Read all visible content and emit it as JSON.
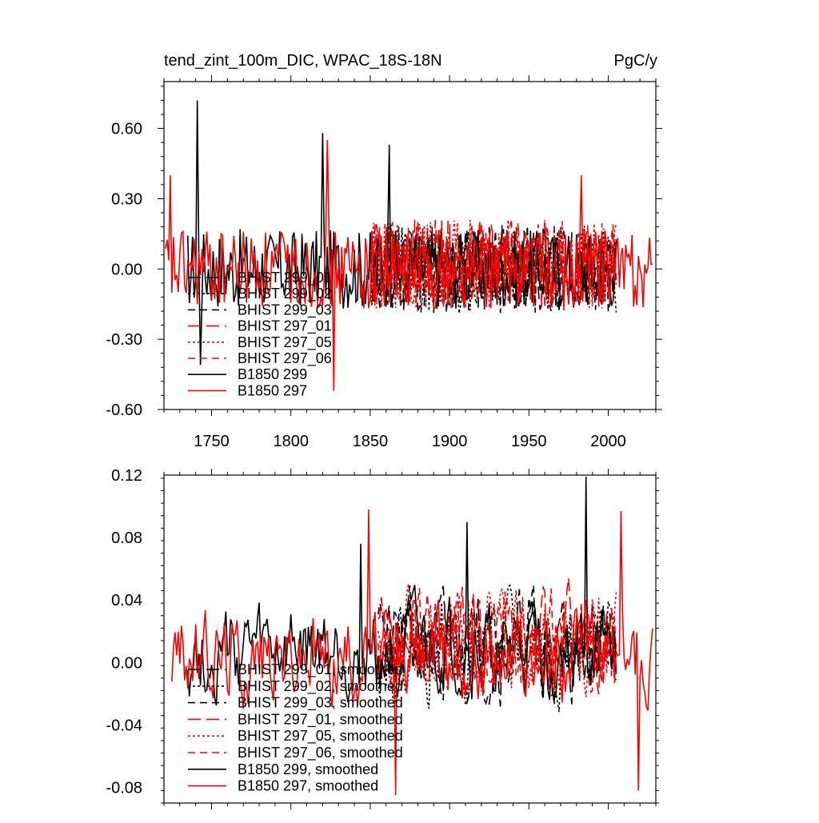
{
  "chart_data": [
    {
      "type": "line",
      "title": "tend_zint_100m_DIC, WPAC_18S-18N",
      "units": "PgC/y",
      "xlabel": "",
      "ylabel": "",
      "xlim": [
        1720,
        2030
      ],
      "ylim": [
        -0.6,
        0.8
      ],
      "x_ticks": [
        1750,
        1800,
        1850,
        1900,
        1950,
        2000
      ],
      "x_tick_labels": [
        "1750",
        "1800",
        "1850",
        "1900",
        "1950",
        "2000"
      ],
      "y_ticks": [
        -0.6,
        -0.3,
        0.0,
        0.3,
        0.6
      ],
      "y_tick_labels": [
        "-0.60",
        "-0.30",
        "0.00",
        "0.30",
        "0.60"
      ],
      "grid": false,
      "legend_position": "lower-left",
      "series": [
        {
          "name": "BHIST 299_01",
          "color": "#000000",
          "dash": "longdash",
          "x_start": 1850,
          "x_end": 2005,
          "amp": 0.19,
          "mean": 0.0,
          "seed": 11
        },
        {
          "name": "BHIST 299_02",
          "color": "#000000",
          "dash": "dot",
          "x_start": 1850,
          "x_end": 2005,
          "amp": 0.19,
          "mean": 0.0,
          "seed": 12
        },
        {
          "name": "BHIST 299_03",
          "color": "#000000",
          "dash": "dash",
          "x_start": 1850,
          "x_end": 2005,
          "amp": 0.19,
          "mean": 0.0,
          "seed": 13
        },
        {
          "name": "BHIST 297_01",
          "color": "#ff0000",
          "dash": "longdash",
          "x_start": 1850,
          "x_end": 2005,
          "amp": 0.19,
          "mean": 0.02,
          "seed": 14
        },
        {
          "name": "BHIST 297_05",
          "color": "#ff0000",
          "dash": "dot",
          "x_start": 1850,
          "x_end": 2005,
          "amp": 0.19,
          "mean": 0.02,
          "seed": 15
        },
        {
          "name": "BHIST 297_06",
          "color": "#ff0000",
          "dash": "dash",
          "x_start": 1850,
          "x_end": 2005,
          "amp": 0.19,
          "mean": 0.02,
          "seed": 16
        },
        {
          "name": "B1850 299",
          "color": "#000000",
          "dash": "solid",
          "x_start": 1735,
          "x_end": 2005,
          "amp": 0.17,
          "mean": 0.0,
          "seed": 17,
          "peaks": [
            [
              1741,
              0.72
            ],
            [
              1743,
              -0.41
            ],
            [
              1820,
              0.58
            ],
            [
              1862,
              0.53
            ]
          ]
        },
        {
          "name": "B1850 297",
          "color": "#ff0000",
          "dash": "solid",
          "x_start": 1721,
          "x_end": 2028,
          "amp": 0.17,
          "mean": 0.0,
          "seed": 18,
          "peaks": [
            [
              1724,
              0.4
            ],
            [
              1827,
              -0.52
            ],
            [
              1823,
              0.55
            ],
            [
              1983,
              0.4
            ]
          ]
        }
      ]
    },
    {
      "type": "line",
      "title": "",
      "xlabel": "",
      "ylabel": "",
      "xlim": [
        1720,
        2030
      ],
      "ylim": [
        -0.09,
        0.12
      ],
      "x_ticks": [
        1750,
        1800,
        1850,
        1900,
        1950,
        2000
      ],
      "x_tick_labels": [],
      "y_ticks": [
        -0.08,
        -0.04,
        0.0,
        0.04,
        0.08,
        0.12
      ],
      "y_tick_labels": [
        "-0.08",
        "-0.04",
        "0.00",
        "0.04",
        "0.08",
        "0.12"
      ],
      "grid": false,
      "legend_position": "lower-left",
      "series": [
        {
          "name": "BHIST 299_01, smoothed",
          "color": "#000000",
          "dash": "longdash",
          "x_start": 1855,
          "x_end": 2005,
          "amp": 0.03,
          "mean": 0.01,
          "seed": 21
        },
        {
          "name": "BHIST 299_02, smoothed",
          "color": "#000000",
          "dash": "dot",
          "x_start": 1855,
          "x_end": 2005,
          "amp": 0.03,
          "mean": 0.01,
          "seed": 22
        },
        {
          "name": "BHIST 299_03, smoothed",
          "color": "#000000",
          "dash": "dash",
          "x_start": 1855,
          "x_end": 2005,
          "amp": 0.03,
          "mean": 0.01,
          "seed": 23
        },
        {
          "name": "BHIST 297_01, smoothed",
          "color": "#ff0000",
          "dash": "longdash",
          "x_start": 1855,
          "x_end": 2005,
          "amp": 0.03,
          "mean": 0.015,
          "seed": 24
        },
        {
          "name": "BHIST 297_05, smoothed",
          "color": "#ff0000",
          "dash": "dot",
          "x_start": 1855,
          "x_end": 2005,
          "amp": 0.03,
          "mean": 0.015,
          "seed": 25
        },
        {
          "name": "BHIST 297_06, smoothed",
          "color": "#ff0000",
          "dash": "dash",
          "x_start": 1855,
          "x_end": 2005,
          "amp": 0.03,
          "mean": 0.015,
          "seed": 26
        },
        {
          "name": "B1850 299, smoothed",
          "color": "#000000",
          "dash": "solid",
          "x_start": 1735,
          "x_end": 2005,
          "amp": 0.028,
          "mean": 0.005,
          "seed": 27,
          "peaks": [
            [
              1844,
              0.076
            ],
            [
              1986,
              0.119
            ],
            [
              1911,
              0.09
            ]
          ]
        },
        {
          "name": "B1850 297, smoothed",
          "color": "#ff0000",
          "dash": "solid",
          "x_start": 1725,
          "x_end": 2028,
          "amp": 0.028,
          "mean": 0.005,
          "seed": 28,
          "peaks": [
            [
              1849,
              0.098
            ],
            [
              1866,
              -0.085
            ],
            [
              2008,
              0.097
            ],
            [
              2019,
              -0.082
            ]
          ]
        }
      ]
    }
  ]
}
